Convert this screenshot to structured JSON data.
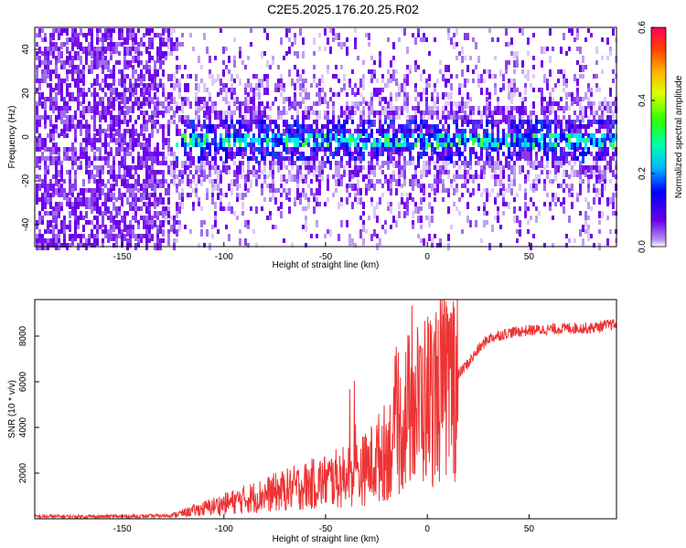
{
  "title": "C2E5.2025.176.20.25.R02",
  "chart_data": [
    {
      "type": "heatmap",
      "xlabel": "Height of straight line (km)",
      "ylabel": "Frequency (Hz)",
      "xlim": [
        -193,
        93
      ],
      "ylim": [
        -50,
        50
      ],
      "xticks": [
        -150,
        -100,
        -50,
        0,
        50
      ],
      "yticks": [
        -40,
        -20,
        0,
        20,
        40
      ],
      "colorbar": {
        "label": "Normalized spectral amplitude",
        "range": [
          0.0,
          0.6
        ],
        "ticks": [
          0.0,
          0.2,
          0.4,
          0.6
        ],
        "colormap": "rainbow"
      },
      "grid": false
    },
    {
      "type": "line",
      "xlabel": "Height of straight line (km)",
      "ylabel": "SNR (10 * v/v)",
      "xlim": [
        -193,
        93
      ],
      "ylim": [
        0,
        9600
      ],
      "xticks": [
        -150,
        -100,
        -50,
        0,
        50
      ],
      "yticks": [
        2000,
        4000,
        6000,
        8000
      ],
      "color": "#ee3333",
      "grid": false,
      "series": [
        {
          "x": [
            -193,
            -180,
            -160,
            -140,
            -130,
            -125,
            -120,
            -115,
            -110,
            -105,
            -100,
            -95,
            -90,
            -85,
            -80,
            -75,
            -70,
            -65,
            -60,
            -55,
            -50,
            -45,
            -40,
            -35,
            -30,
            -25,
            -20,
            -15,
            -12,
            -10,
            -5,
            0,
            5,
            10,
            15,
            20,
            25,
            30,
            40,
            50,
            60,
            70,
            80,
            90,
            93
          ],
          "y": [
            100,
            100,
            100,
            110,
            130,
            160,
            250,
            350,
            450,
            550,
            650,
            750,
            850,
            950,
            1050,
            1150,
            1250,
            1350,
            1450,
            1550,
            1650,
            1750,
            1850,
            2000,
            2200,
            2600,
            3000,
            3500,
            4200,
            4700,
            5000,
            5300,
            5600,
            5900,
            6300,
            6800,
            7400,
            7900,
            8150,
            8250,
            8300,
            8350,
            8350,
            8500,
            8500
          ]
        }
      ]
    }
  ]
}
